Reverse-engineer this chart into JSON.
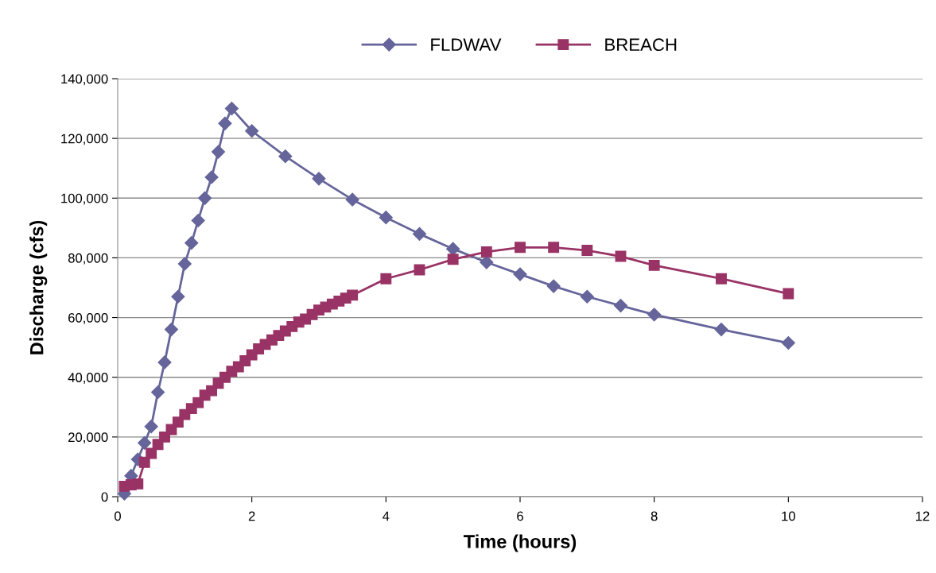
{
  "chart_data": {
    "type": "line",
    "xlabel": "Time (hours)",
    "ylabel": "Discharge (cfs)",
    "xlim": [
      0,
      12
    ],
    "xticks": [
      0,
      2,
      4,
      6,
      8,
      10,
      12
    ],
    "ylim": [
      0,
      140000
    ],
    "yticks": [
      {
        "value": 0,
        "label": "0"
      },
      {
        "value": 20000,
        "label": "20,000"
      },
      {
        "value": 40000,
        "label": "40,000"
      },
      {
        "value": 60000,
        "label": "60,000"
      },
      {
        "value": 80000,
        "label": "80,000"
      },
      {
        "value": 100000,
        "label": "100,000"
      },
      {
        "value": 120000,
        "label": "120,000"
      },
      {
        "value": 140000,
        "label": "140,000"
      }
    ],
    "grid": "y",
    "legend": "top",
    "line_style": "solid",
    "series": [
      {
        "name": "FLDWAV",
        "color": "#65659b",
        "marker": "diamond",
        "x": [
          0.1,
          0.2,
          0.3,
          0.4,
          0.5,
          0.6,
          0.7,
          0.8,
          0.9,
          1.0,
          1.1,
          1.2,
          1.3,
          1.4,
          1.5,
          1.6,
          1.7,
          2,
          2.5,
          3,
          3.5,
          4,
          4.5,
          5,
          5.5,
          6,
          6.5,
          7,
          7.5,
          8,
          9,
          10
        ],
        "values": [
          1000,
          7000,
          12500,
          18000,
          23500,
          35000,
          45000,
          56000,
          67000,
          78000,
          85000,
          92500,
          100000,
          107000,
          115500,
          125000,
          130000,
          122500,
          114000,
          106500,
          99500,
          93500,
          88000,
          83000,
          78500,
          74500,
          70500,
          67000,
          64000,
          61000,
          56000,
          51500
        ]
      },
      {
        "name": "BREACH",
        "color": "#993366",
        "marker": "square",
        "x": [
          0.1,
          0.2,
          0.3,
          0.4,
          0.5,
          0.6,
          0.7,
          0.8,
          0.9,
          1.0,
          1.1,
          1.2,
          1.3,
          1.4,
          1.5,
          1.6,
          1.7,
          1.8,
          1.9,
          2.0,
          2.1,
          2.2,
          2.3,
          2.4,
          2.5,
          2.6,
          2.7,
          2.8,
          2.9,
          3.0,
          3.1,
          3.2,
          3.3,
          3.4,
          3.5,
          4,
          4.5,
          5,
          5.5,
          6,
          6.5,
          7,
          7.5,
          8,
          9,
          10
        ],
        "values": [
          3500,
          4000,
          4300,
          11500,
          14500,
          17500,
          20000,
          22500,
          25000,
          27500,
          29500,
          31500,
          34000,
          35500,
          38000,
          40000,
          42000,
          43500,
          45500,
          47500,
          49500,
          51000,
          52500,
          54000,
          55500,
          57000,
          58500,
          59500,
          61000,
          62500,
          63500,
          64500,
          65500,
          66500,
          67500,
          73000,
          76000,
          79500,
          82000,
          83500,
          83500,
          82500,
          80500,
          77500,
          73000,
          68000
        ]
      }
    ]
  }
}
